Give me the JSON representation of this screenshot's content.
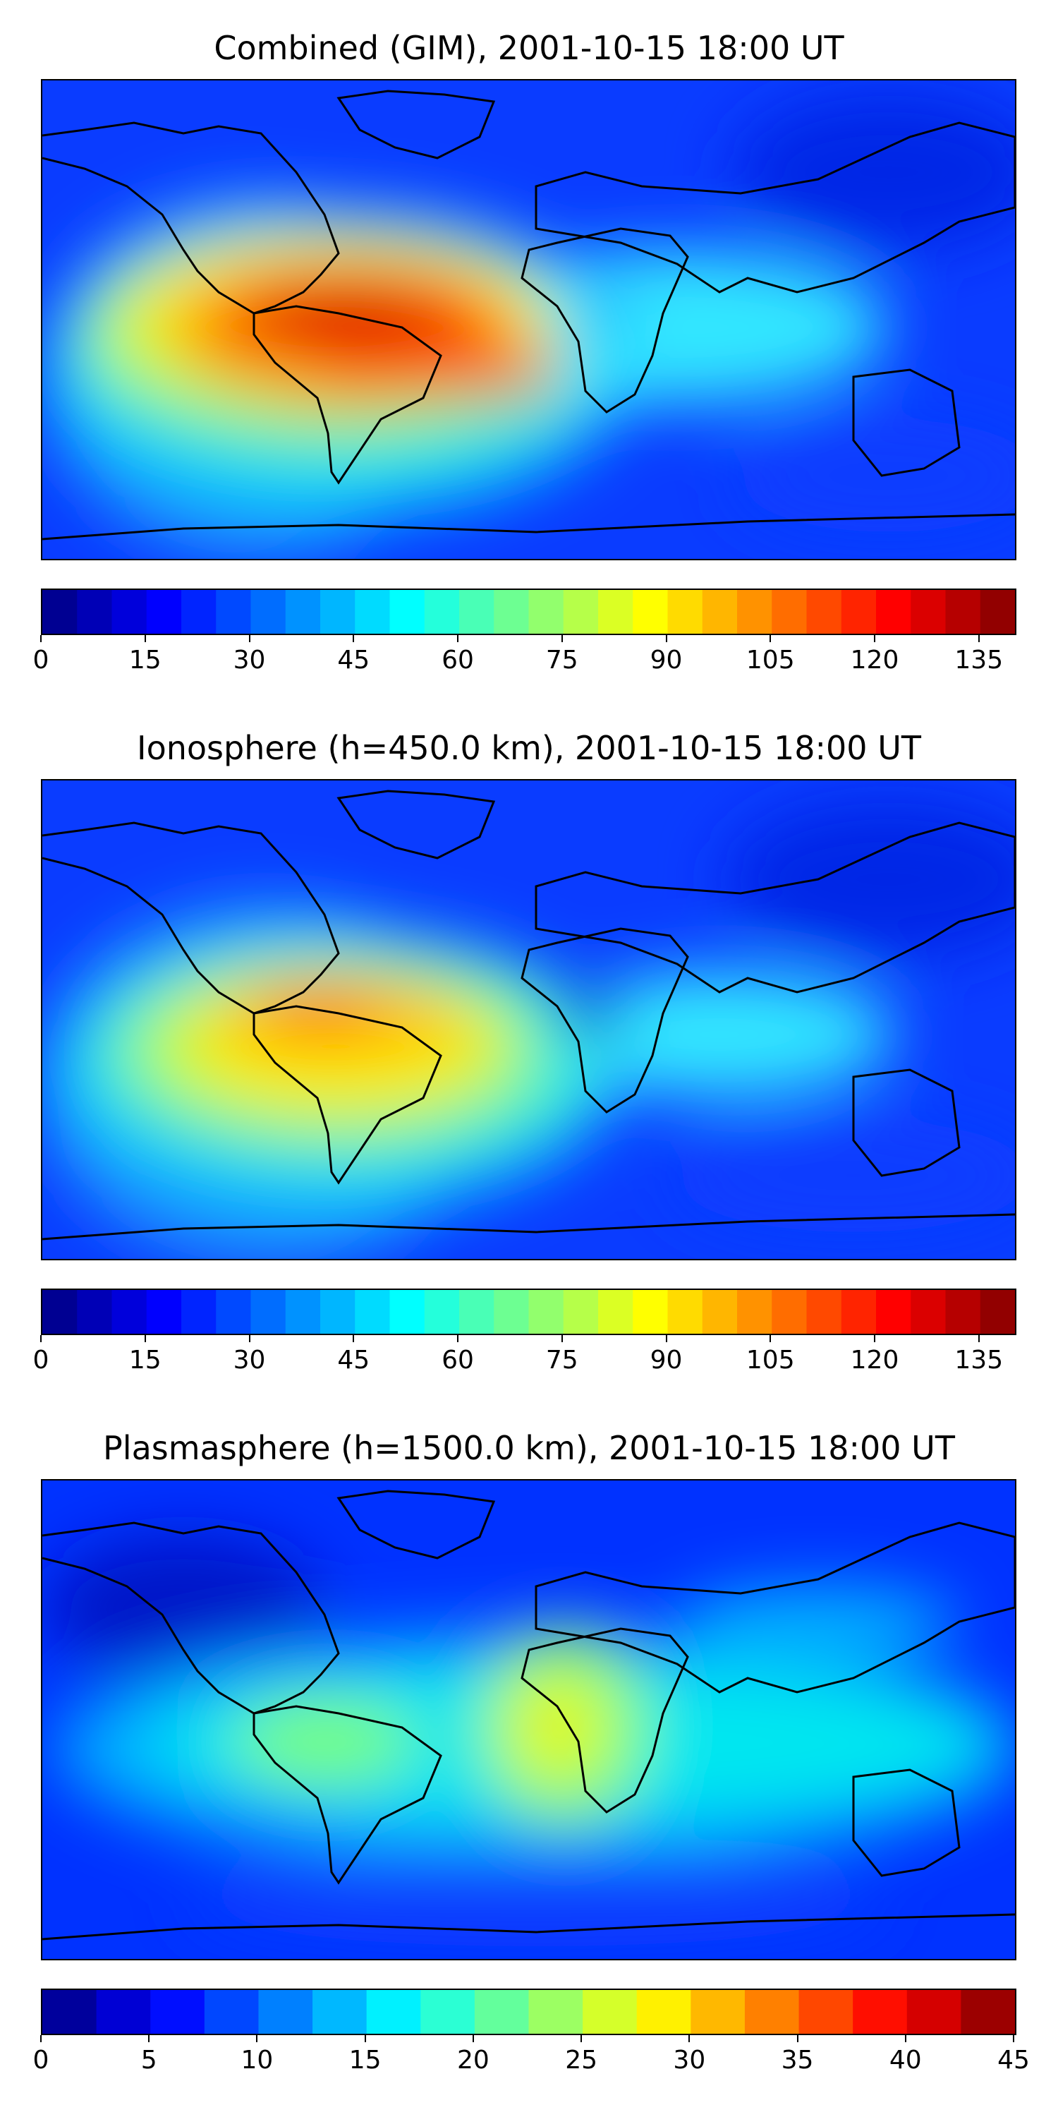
{
  "figure": {
    "panels": [
      {
        "title": "Combined (GIM), 2001-10-15 18:00 UT",
        "colorbar": {
          "min": 0,
          "max": 140,
          "step": 5,
          "tick_labels": [
            "0",
            "15",
            "30",
            "45",
            "60",
            "75",
            "90",
            "105",
            "120",
            "135"
          ]
        }
      },
      {
        "title": "Ionosphere  (h=450.0 km), 2001-10-15 18:00 UT",
        "colorbar": {
          "min": 0,
          "max": 140,
          "step": 5,
          "tick_labels": [
            "0",
            "15",
            "30",
            "45",
            "60",
            "75",
            "90",
            "105",
            "120",
            "135"
          ]
        }
      },
      {
        "title": "Plasmasphere (h=1500.0 km), 2001-10-15 18:00 UT",
        "colorbar": {
          "min": 0,
          "max": 45,
          "step": 2.5,
          "tick_labels": [
            "0",
            "5",
            "10",
            "15",
            "20",
            "25",
            "30",
            "35",
            "40",
            "45"
          ]
        }
      }
    ]
  },
  "colormap": "jet",
  "colors": {
    "coastline": "#000000",
    "background": "#0000ff"
  }
}
